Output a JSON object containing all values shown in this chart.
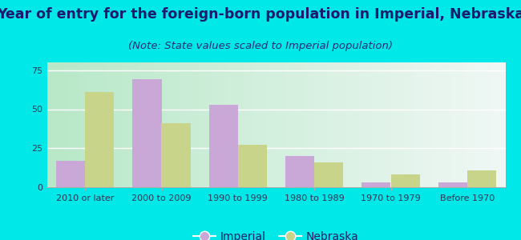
{
  "title": "Year of entry for the foreign-born population in Imperial, Nebraska",
  "subtitle": "(Note: State values scaled to Imperial population)",
  "categories": [
    "2010 or later",
    "2000 to 2009",
    "1990 to 1999",
    "1980 to 1989",
    "1970 to 1979",
    "Before 1970"
  ],
  "imperial_values": [
    17,
    69,
    53,
    20,
    3,
    3
  ],
  "nebraska_values": [
    61,
    41,
    27,
    16,
    8,
    11
  ],
  "imperial_color": "#c9a8d8",
  "nebraska_color": "#c8d48a",
  "background_outer": "#00e8e8",
  "background_inner_left": "#b8e8c8",
  "background_inner_right": "#e8f4f0",
  "ylim": [
    0,
    80
  ],
  "yticks": [
    0,
    25,
    50,
    75
  ],
  "bar_width": 0.38,
  "title_fontsize": 12.5,
  "subtitle_fontsize": 9.5,
  "tick_fontsize": 8,
  "title_color": "#1a1a6e",
  "subtitle_color": "#2a2a7a",
  "legend_imperial": "Imperial",
  "legend_nebraska": "Nebraska"
}
